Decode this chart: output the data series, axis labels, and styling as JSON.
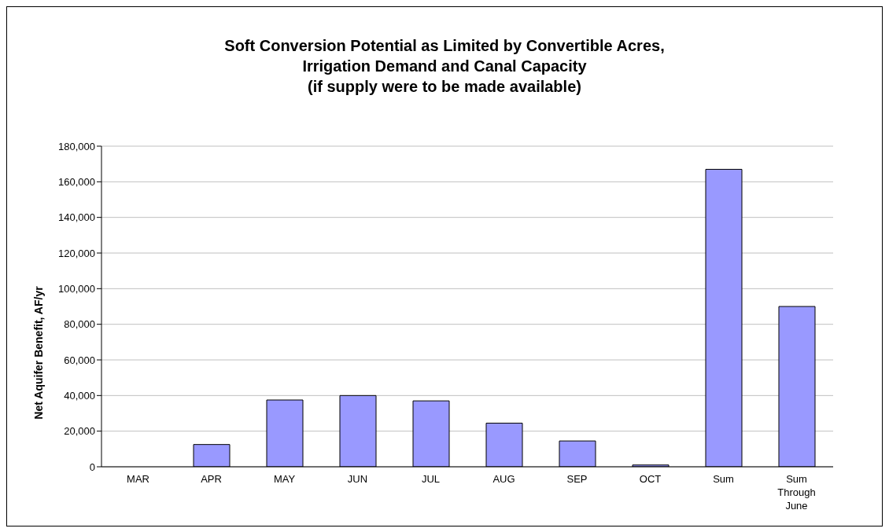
{
  "chart_data": {
    "type": "bar",
    "title": "Soft Conversion Potential as Limited by Convertible Acres,\nIrrigation Demand and Canal Capacity\n(if supply were to be made available)",
    "ylabel": "Net Aquifer Benefit, AF/yr",
    "categories": [
      "MAR",
      "APR",
      "MAY",
      "JUN",
      "JUL",
      "AUG",
      "SEP",
      "OCT",
      "Sum",
      "Sum\nThrough\nJune"
    ],
    "values": [
      0,
      12500,
      37500,
      40000,
      37000,
      24500,
      14500,
      1000,
      167000,
      90000
    ],
    "color": "#9999ff",
    "ylim": [
      0,
      180000
    ],
    "yticks": [
      {
        "value": 0,
        "label": "0"
      },
      {
        "value": 20000,
        "label": "20,000"
      },
      {
        "value": 40000,
        "label": "40,000"
      },
      {
        "value": 60000,
        "label": "60,000"
      },
      {
        "value": 80000,
        "label": "80,000"
      },
      {
        "value": 100000,
        "label": "100,000"
      },
      {
        "value": 120000,
        "label": "120,000"
      },
      {
        "value": 140000,
        "label": "140,000"
      },
      {
        "value": 160000,
        "label": "160,000"
      },
      {
        "value": 180000,
        "label": "180,000"
      }
    ],
    "grid": "y"
  }
}
